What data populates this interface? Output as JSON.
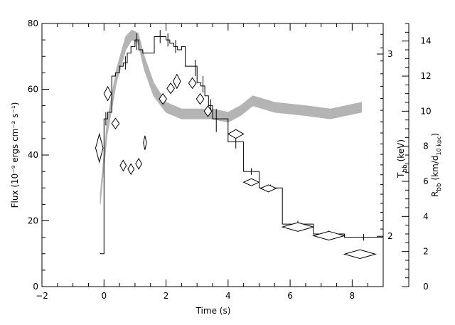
{
  "chart_data": {
    "type": "line",
    "title": "",
    "xlabel": "Time (s)",
    "ylabel": "Flux (10⁻⁹ ergs cm⁻² s⁻¹)",
    "right_label_T": "T",
    "right_label_T_sub": "bb",
    "right_label_T_unit": " (keV)",
    "right_label_R": "R",
    "right_label_R_sub": "bb",
    "right_label_R_unit_open": " (km/d",
    "right_label_R_unit_sub": "10 kpc",
    "right_label_R_unit_close": ")",
    "xlim": [
      -2,
      9
    ],
    "ylim": [
      0,
      80
    ],
    "x_ticks": [
      -2,
      0,
      2,
      4,
      6,
      8
    ],
    "x_tick_labels": [
      "−2",
      "0",
      "2",
      "4",
      "6",
      "8"
    ],
    "y_ticks": [
      0,
      20,
      40,
      60,
      80
    ],
    "y_tick_labels": [
      "0",
      "20",
      "40",
      "60",
      "80"
    ],
    "r_ticks": [
      0,
      2,
      4,
      6,
      8,
      10,
      12,
      14
    ],
    "r_tick_labels": [
      "0",
      "2",
      "4",
      "6",
      "8",
      "10",
      "12",
      "14"
    ],
    "r_scale": 5.333,
    "t_ticks": [
      2,
      3
    ],
    "t_tick_labels": [
      "2",
      "3"
    ],
    "t_tick_flux": [
      15.3,
      70.7
    ],
    "grid": false,
    "series": [
      {
        "kind": "flux-histogram",
        "color": "#000000",
        "points": [
          {
            "x0": -0.12,
            "x1": 0.0,
            "y": 10
          },
          {
            "x0": 0.0,
            "x1": 0.12,
            "y": 51
          },
          {
            "x0": 0.12,
            "x1": 0.25,
            "y": 53
          },
          {
            "x0": 0.25,
            "x1": 0.37,
            "y": 64
          },
          {
            "x0": 0.37,
            "x1": 0.5,
            "y": 65
          },
          {
            "x0": 0.5,
            "x1": 0.62,
            "y": 67
          },
          {
            "x0": 0.62,
            "x1": 0.75,
            "y": 68
          },
          {
            "x0": 0.75,
            "x1": 0.87,
            "y": 71
          },
          {
            "x0": 0.87,
            "x1": 1.0,
            "y": 73
          },
          {
            "x0": 1.0,
            "x1": 1.12,
            "y": 75
          },
          {
            "x0": 1.12,
            "x1": 1.25,
            "y": 72
          },
          {
            "x0": 1.25,
            "x1": 1.37,
            "y": 71
          },
          {
            "x0": 1.37,
            "x1": 1.5,
            "y": 71
          },
          {
            "x0": 1.5,
            "x1": 1.62,
            "y": 71
          },
          {
            "x0": 1.62,
            "x1": 1.75,
            "y": 76
          },
          {
            "x0": 1.75,
            "x1": 1.87,
            "y": 76
          },
          {
            "x0": 1.87,
            "x1": 2.0,
            "y": 76
          },
          {
            "x0": 2.0,
            "x1": 2.12,
            "y": 75
          },
          {
            "x0": 2.12,
            "x1": 2.25,
            "y": 74
          },
          {
            "x0": 2.25,
            "x1": 2.37,
            "y": 73
          },
          {
            "x0": 2.37,
            "x1": 2.5,
            "y": 72
          },
          {
            "x0": 2.5,
            "x1": 2.62,
            "y": 73
          },
          {
            "x0": 2.62,
            "x1": 2.75,
            "y": 67
          },
          {
            "x0": 2.75,
            "x1": 2.87,
            "y": 67
          },
          {
            "x0": 2.87,
            "x1": 3.0,
            "y": 67
          },
          {
            "x0": 3.0,
            "x1": 3.12,
            "y": 62
          },
          {
            "x0": 3.12,
            "x1": 3.25,
            "y": 61
          },
          {
            "x0": 3.25,
            "x1": 3.37,
            "y": 58
          },
          {
            "x0": 3.37,
            "x1": 3.5,
            "y": 55
          },
          {
            "x0": 3.5,
            "x1": 3.75,
            "y": 51
          },
          {
            "x0": 3.75,
            "x1": 4.0,
            "y": 51
          },
          {
            "x0": 4.0,
            "x1": 4.5,
            "y": 44
          },
          {
            "x0": 4.5,
            "x1": 5.0,
            "y": 35
          },
          {
            "x0": 5.0,
            "x1": 5.75,
            "y": 30
          },
          {
            "x0": 5.75,
            "x1": 6.75,
            "y": 19
          },
          {
            "x0": 6.75,
            "x1": 7.75,
            "y": 16
          },
          {
            "x0": 7.75,
            "x1": 9.0,
            "y": 15
          }
        ],
        "error_bars": [
          {
            "x": 0.06,
            "lo": 49,
            "hi": 53
          },
          {
            "x": 0.69,
            "lo": 66,
            "hi": 70
          },
          {
            "x": 1.06,
            "lo": 72,
            "hi": 77
          },
          {
            "x": 1.81,
            "lo": 74,
            "hi": 78
          },
          {
            "x": 2.06,
            "lo": 73,
            "hi": 77
          },
          {
            "x": 2.31,
            "lo": 71,
            "hi": 75
          },
          {
            "x": 2.94,
            "lo": 64,
            "hi": 69
          },
          {
            "x": 3.19,
            "lo": 59,
            "hi": 64
          },
          {
            "x": 3.44,
            "lo": 53,
            "hi": 57
          },
          {
            "x": 3.62,
            "lo": 47,
            "hi": 54
          },
          {
            "x": 4.25,
            "lo": 42,
            "hi": 46
          },
          {
            "x": 4.75,
            "lo": 34,
            "hi": 36
          },
          {
            "x": 5.37,
            "lo": 29,
            "hi": 31
          },
          {
            "x": 6.25,
            "lo": 17,
            "hi": 20
          },
          {
            "x": 7.25,
            "lo": 15,
            "hi": 17
          },
          {
            "x": 8.37,
            "lo": 14,
            "hi": 16
          }
        ]
      },
      {
        "kind": "temperature-band",
        "color": "#b4b4b4",
        "x": [
          -0.12,
          0.1,
          0.4,
          0.7,
          0.9,
          1.1,
          1.3,
          1.6,
          2.0,
          2.5,
          3.0,
          3.5,
          4.0,
          4.4,
          4.8,
          5.5,
          6.5,
          7.3,
          8.3
        ],
        "y_low": [
          25,
          46,
          62,
          72,
          75,
          74,
          66,
          58,
          53,
          51,
          51,
          51,
          50,
          52,
          55,
          53,
          52,
          51,
          53
        ],
        "y_high": [
          28,
          50,
          66,
          76,
          78,
          77,
          70,
          62,
          56,
          54,
          54,
          54,
          53,
          55,
          58,
          56,
          55,
          54,
          56
        ]
      },
      {
        "kind": "radius-diamonds",
        "color": "#000000",
        "unit": "km/d10kpc",
        "points": [
          {
            "x": -0.15,
            "y": 7.9,
            "dx": 0.12,
            "dy": 0.8
          },
          {
            "x": 0.12,
            "y": 11.0,
            "dx": 0.12,
            "dy": 0.4
          },
          {
            "x": 0.37,
            "y": 9.3,
            "dx": 0.12,
            "dy": 0.3
          },
          {
            "x": 0.62,
            "y": 6.9,
            "dx": 0.1,
            "dy": 0.3
          },
          {
            "x": 0.87,
            "y": 6.7,
            "dx": 0.1,
            "dy": 0.3
          },
          {
            "x": 1.12,
            "y": 7.0,
            "dx": 0.1,
            "dy": 0.3
          },
          {
            "x": 1.32,
            "y": 8.2,
            "dx": 0.05,
            "dy": 0.4
          },
          {
            "x": 1.9,
            "y": 10.7,
            "dx": 0.12,
            "dy": 0.3
          },
          {
            "x": 2.15,
            "y": 11.3,
            "dx": 0.12,
            "dy": 0.3
          },
          {
            "x": 2.35,
            "y": 11.7,
            "dx": 0.12,
            "dy": 0.4
          },
          {
            "x": 2.85,
            "y": 11.6,
            "dx": 0.12,
            "dy": 0.3
          },
          {
            "x": 3.1,
            "y": 10.7,
            "dx": 0.12,
            "dy": 0.3
          },
          {
            "x": 3.35,
            "y": 10.0,
            "dx": 0.12,
            "dy": 0.3
          },
          {
            "x": 4.25,
            "y": 8.7,
            "dx": 0.25,
            "dy": 0.25
          },
          {
            "x": 4.75,
            "y": 5.95,
            "dx": 0.25,
            "dy": 0.2
          },
          {
            "x": 5.3,
            "y": 5.6,
            "dx": 0.25,
            "dy": 0.2
          },
          {
            "x": 6.25,
            "y": 3.4,
            "dx": 0.5,
            "dy": 0.25
          },
          {
            "x": 7.25,
            "y": 2.9,
            "dx": 0.5,
            "dy": 0.25
          },
          {
            "x": 8.25,
            "y": 1.85,
            "dx": 0.5,
            "dy": 0.25
          }
        ]
      }
    ]
  }
}
